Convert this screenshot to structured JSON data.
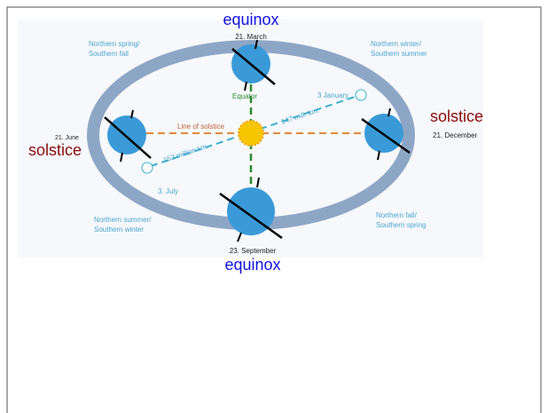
{
  "annotations": {
    "top_equinox": "equinox",
    "march": "21. March",
    "spring_line1": "Northern spring/",
    "spring_line2": "Southern fall",
    "winter_line1": "Northern winter/",
    "winter_line2": "Southern  summer",
    "equator": "Equator",
    "january": "3 January",
    "line_of_solstice": "Line of solstice",
    "near_distance": "147 mill. km.",
    "right_solstice": "solstice",
    "december": "21. December",
    "june": "21. June",
    "left_solstice": "solstice",
    "far_distance": "152 million km.",
    "july": "3. July",
    "summer_line1": "Northern summer/",
    "summer_line2": "Southern winter",
    "fall_line1": "Northern fall/",
    "fall_line2": "Southern spring",
    "september": "23. September",
    "bottom_equinox": "equinox"
  }
}
